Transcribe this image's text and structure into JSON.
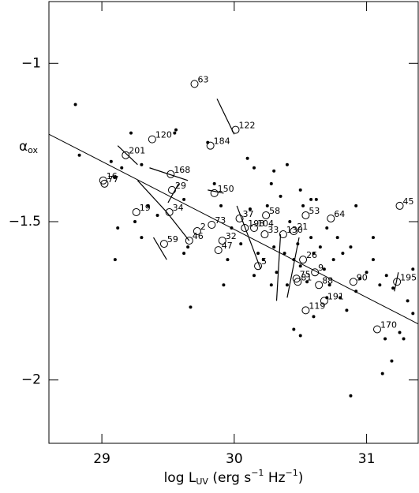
{
  "chart_data": {
    "type": "scatter",
    "xlabel_parts": [
      {
        "text": "log L"
      },
      {
        "text": "UV",
        "sub": true
      },
      {
        "text": " (erg s"
      },
      {
        "text": "−1",
        "sup": true
      },
      {
        "text": " Hz"
      },
      {
        "text": "−1",
        "sup": true
      },
      {
        "text": ")"
      }
    ],
    "ylabel_parts": [
      {
        "text": "α"
      },
      {
        "text": "ox",
        "sub": true
      }
    ],
    "xlim": [
      28.6,
      31.39
    ],
    "ylim": [
      -2.2,
      -0.805
    ],
    "xticks": [
      29,
      30,
      31
    ],
    "yticks": [
      {
        "value": -1,
        "label": "−1"
      },
      {
        "value": -1.5,
        "label": "−1.5"
      },
      {
        "value": -2,
        "label": "−2"
      }
    ],
    "color": "#000000",
    "fit": {
      "x": [
        28.6,
        31.39
      ],
      "y": [
        -1.224,
        -1.823
      ]
    },
    "dots": {
      "x": [
        28.8,
        28.83,
        29.1,
        29.15,
        29.07,
        29.22,
        29.3,
        29.12,
        29.1,
        29.25,
        29.3,
        29.35,
        29.42,
        29.55,
        29.56,
        29.62,
        29.65,
        29.62,
        29.67,
        29.8,
        29.85,
        29.9,
        29.92,
        29.98,
        30.05,
        30.1,
        30.15,
        30.12,
        30.18,
        30.22,
        30.25,
        30.28,
        30.3,
        30.32,
        30.35,
        30.38,
        30.4,
        30.42,
        30.45,
        30.48,
        30.5,
        30.52,
        30.55,
        30.58,
        30.6,
        30.62,
        30.65,
        30.68,
        30.7,
        30.72,
        30.75,
        30.78,
        30.8,
        30.82,
        30.85,
        30.88,
        30.92,
        30.95,
        31.0,
        31.05,
        31.1,
        31.12,
        31.15,
        31.2,
        31.25,
        31.28,
        31.35,
        31.31,
        31.35,
        31.19,
        30.5,
        30.45,
        30.6,
        30.92,
        30.4,
        30.3,
        30.5,
        30.58,
        30.88,
        31.14,
        30.15,
        30.28,
        29.95,
        30.7,
        31.05
      ],
      "y": [
        -1.13,
        -1.29,
        -1.36,
        -1.33,
        -1.31,
        -1.22,
        -1.32,
        -1.52,
        -1.62,
        -1.5,
        -1.55,
        -1.45,
        -1.48,
        -1.22,
        -1.21,
        -1.43,
        -1.58,
        -1.6,
        -1.77,
        -1.25,
        -1.38,
        -1.45,
        -1.7,
        -1.52,
        -1.57,
        -1.3,
        -1.33,
        -1.46,
        -1.6,
        -1.62,
        -1.45,
        -1.38,
        -1.58,
        -1.66,
        -1.42,
        -1.6,
        -1.7,
        -1.5,
        -1.62,
        -1.57,
        -1.64,
        -1.45,
        -1.69,
        -1.55,
        -1.6,
        -1.43,
        -1.58,
        -1.65,
        -1.52,
        -1.7,
        -1.62,
        -1.55,
        -1.74,
        -1.6,
        -1.78,
        -1.58,
        -1.72,
        -1.68,
        -1.66,
        -1.62,
        -1.7,
        -1.98,
        -1.67,
        -1.71,
        -1.85,
        -1.87,
        -1.65,
        -1.75,
        -1.79,
        -1.94,
        -1.86,
        -1.84,
        -1.8,
        -1.45,
        -1.32,
        -1.34,
        -1.4,
        -1.43,
        -2.05,
        -1.87,
        -1.67,
        -1.7,
        -1.62,
        -1.74,
        -1.55
      ]
    },
    "labeled": {
      "x": [
        29.7,
        30.01,
        29.82,
        29.38,
        29.18,
        29.52,
        29.01,
        29.02,
        29.53,
        29.85,
        29.26,
        29.51,
        31.25,
        30.54,
        30.24,
        30.04,
        30.08,
        30.15,
        30.73,
        29.83,
        29.72,
        30.23,
        30.37,
        30.45,
        29.91,
        29.66,
        29.47,
        29.88,
        30.52,
        30.18,
        30.61,
        30.9,
        31.23,
        30.47,
        30.48,
        30.64,
        30.68,
        30.54,
        31.08
      ],
      "y": [
        -1.065,
        -1.21,
        -1.26,
        -1.24,
        -1.29,
        -1.35,
        -1.37,
        -1.38,
        -1.4,
        -1.41,
        -1.47,
        -1.47,
        -1.45,
        -1.48,
        -1.48,
        -1.49,
        -1.52,
        -1.52,
        -1.49,
        -1.51,
        -1.53,
        -1.54,
        -1.54,
        -1.53,
        -1.56,
        -1.56,
        -1.57,
        -1.59,
        -1.62,
        -1.64,
        -1.66,
        -1.69,
        -1.69,
        -1.68,
        -1.69,
        -1.7,
        -1.75,
        -1.78,
        -1.84
      ],
      "labels": [
        "63",
        "122",
        "184",
        "120",
        "201",
        "168",
        "16",
        "77",
        "29",
        "150",
        "19",
        "34",
        "45",
        "53",
        "58",
        "37",
        "198",
        "104",
        "64",
        "73",
        "2",
        "33",
        "130",
        "21",
        "32",
        "46",
        "59",
        "47",
        "26",
        "5",
        "9",
        "90",
        "195",
        "75",
        "81",
        "88",
        "191",
        "119",
        "170"
      ]
    },
    "segments": {
      "x1": [
        29.87,
        29.36,
        29.12,
        29.27,
        29.49,
        30.02,
        30.35,
        30.49,
        29.39,
        29.8,
        29.58,
        31.24
      ],
      "y1": [
        -1.112,
        -1.33,
        -1.26,
        -1.37,
        -1.47,
        -1.45,
        -1.54,
        -1.55,
        -1.55,
        -1.4,
        -1.38,
        -1.66
      ],
      "x2": [
        30.0,
        29.65,
        29.27,
        29.49,
        29.66,
        30.2,
        30.32,
        30.4,
        29.49,
        29.92,
        29.5,
        31.21
      ],
      "y2": [
        -1.224,
        -1.37,
        -1.32,
        -1.47,
        -1.56,
        -1.65,
        -1.75,
        -1.74,
        -1.62,
        -1.41,
        -1.44,
        -1.72
      ]
    }
  }
}
